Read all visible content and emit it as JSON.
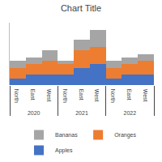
{
  "chart_data": {
    "type": "bar",
    "title": "Chart Title",
    "stacked": true,
    "groups": [
      "2020",
      "2021",
      "2022"
    ],
    "categories": [
      "North",
      "East",
      "West"
    ],
    "series": [
      {
        "name": "Apples",
        "color": "#4472C4",
        "values": [
          [
            2,
            3,
            3
          ],
          [
            3,
            5,
            6
          ],
          [
            2,
            3,
            3
          ]
        ]
      },
      {
        "name": "Oranges",
        "color": "#ED7D31",
        "values": [
          [
            3,
            3,
            4
          ],
          [
            3,
            5,
            5
          ],
          [
            3,
            3,
            4
          ]
        ]
      },
      {
        "name": "Bananas",
        "color": "#A5A5A5",
        "values": [
          [
            2,
            2,
            3
          ],
          [
            1,
            3,
            5
          ],
          [
            2,
            2,
            2
          ]
        ]
      }
    ],
    "ylim": [
      0,
      18
    ],
    "yticks": [],
    "grid": false,
    "tick_labels": "x",
    "legend": "bottom"
  }
}
